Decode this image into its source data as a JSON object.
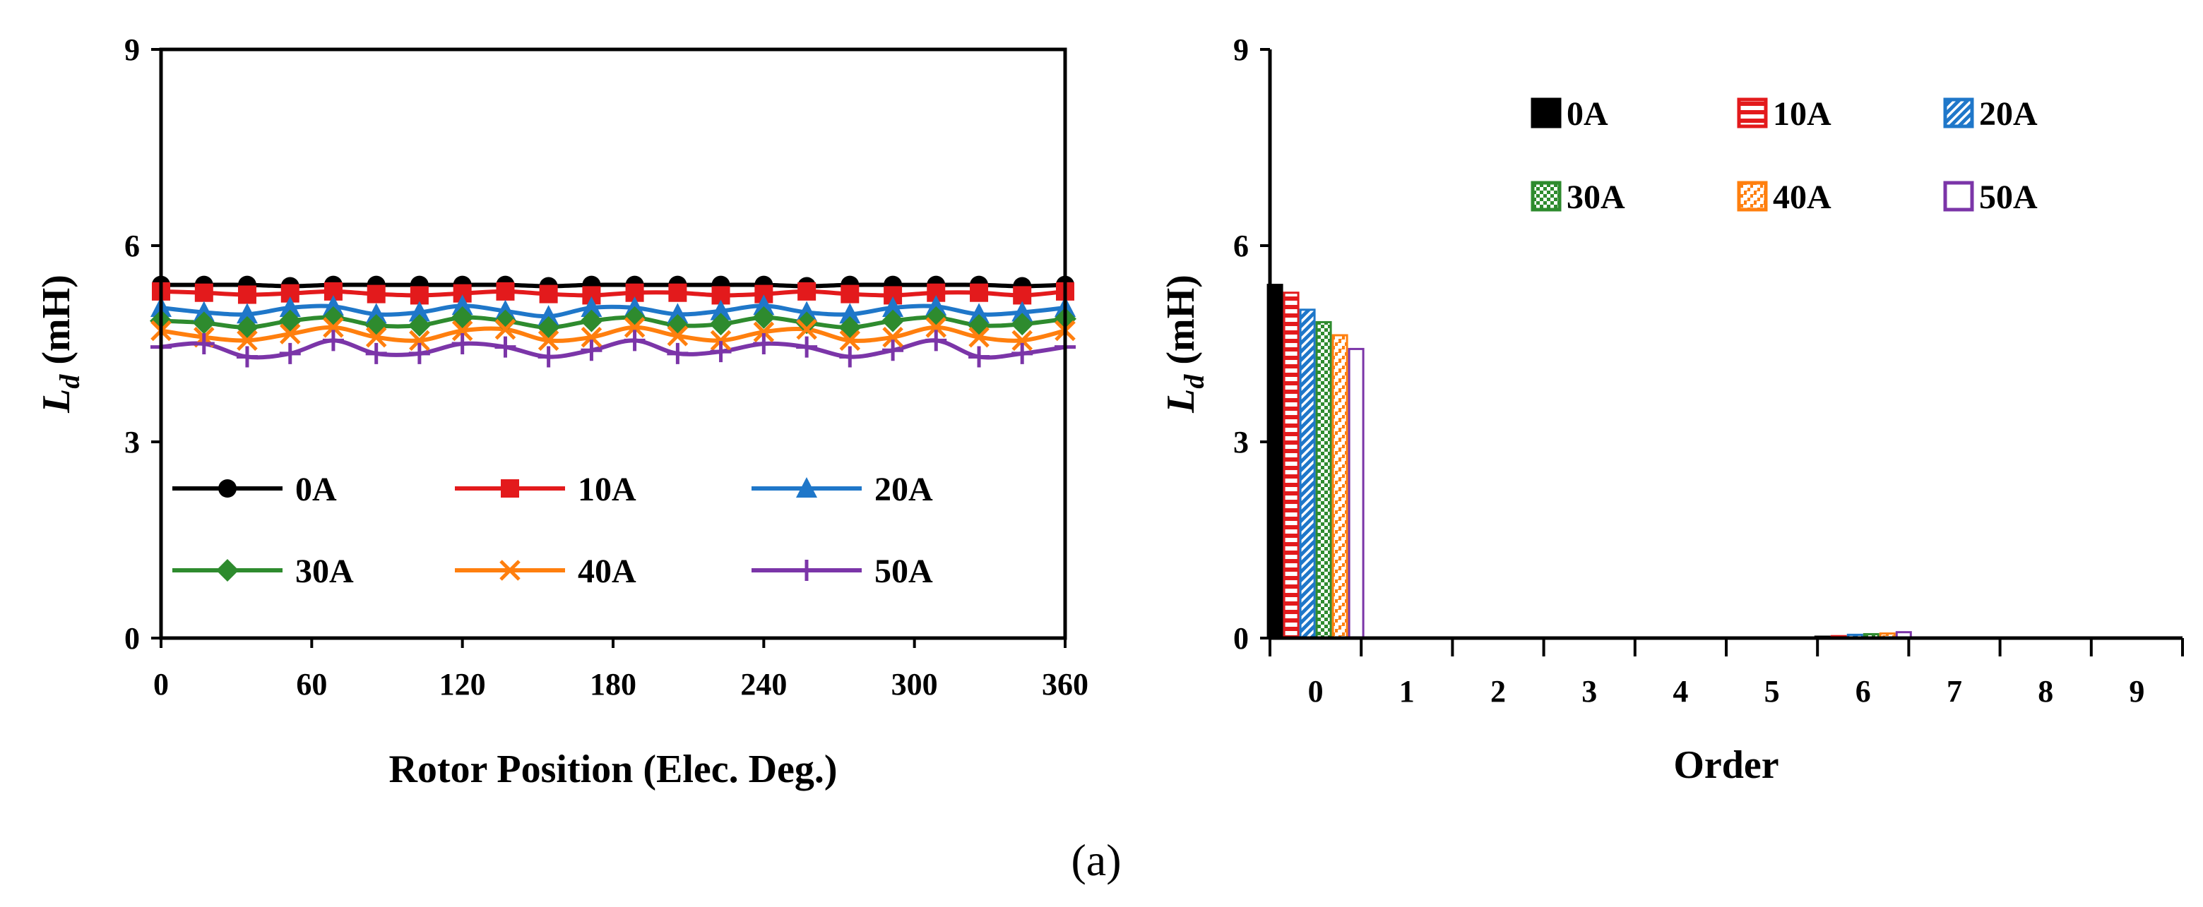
{
  "caption": "(a)",
  "chart_data": [
    {
      "type": "line",
      "xlabel": "Rotor Position (Elec. Deg.)",
      "ylabel_main": "L",
      "ylabel_sub": "d",
      "ylabel_unit": " (mH)",
      "xlim": [
        0,
        360
      ],
      "ylim": [
        0,
        9
      ],
      "xticks": [
        0,
        60,
        120,
        180,
        240,
        300,
        360
      ],
      "yticks": [
        0,
        3,
        6,
        9
      ],
      "grid": false,
      "legend_position": "bottom-inside",
      "x": [
        0,
        17.1,
        34.3,
        51.4,
        68.6,
        85.7,
        102.9,
        120,
        137.1,
        154.3,
        171.4,
        188.6,
        205.7,
        222.9,
        240,
        257.1,
        274.3,
        291.4,
        308.6,
        325.7,
        342.9,
        360
      ],
      "series": [
        {
          "name": "0A",
          "color": "#000000",
          "marker": "circle",
          "values": [
            5.4,
            5.4,
            5.4,
            5.38,
            5.4,
            5.4,
            5.4,
            5.4,
            5.4,
            5.38,
            5.4,
            5.4,
            5.4,
            5.4,
            5.4,
            5.38,
            5.4,
            5.4,
            5.4,
            5.4,
            5.38,
            5.4
          ]
        },
        {
          "name": "10A",
          "color": "#e31a1c",
          "marker": "square",
          "values": [
            5.3,
            5.28,
            5.25,
            5.27,
            5.3,
            5.26,
            5.24,
            5.27,
            5.3,
            5.26,
            5.24,
            5.28,
            5.28,
            5.24,
            5.26,
            5.3,
            5.26,
            5.24,
            5.28,
            5.28,
            5.24,
            5.3
          ]
        },
        {
          "name": "20A",
          "color": "#1f77c9",
          "marker": "triangle",
          "values": [
            5.05,
            4.98,
            4.95,
            5.05,
            5.07,
            4.95,
            4.98,
            5.08,
            5.0,
            4.92,
            5.05,
            5.05,
            4.95,
            5.0,
            5.08,
            4.98,
            4.95,
            5.05,
            5.07,
            4.95,
            4.98,
            5.05
          ]
        },
        {
          "name": "30A",
          "color": "#2e8b2e",
          "marker": "diamond",
          "values": [
            4.85,
            4.82,
            4.75,
            4.85,
            4.9,
            4.78,
            4.78,
            4.9,
            4.85,
            4.75,
            4.85,
            4.9,
            4.78,
            4.8,
            4.9,
            4.82,
            4.75,
            4.85,
            4.9,
            4.78,
            4.8,
            4.88
          ]
        },
        {
          "name": "40A",
          "color": "#ff7f0e",
          "marker": "x",
          "values": [
            4.7,
            4.6,
            4.55,
            4.65,
            4.75,
            4.6,
            4.55,
            4.7,
            4.72,
            4.55,
            4.6,
            4.75,
            4.62,
            4.55,
            4.68,
            4.72,
            4.55,
            4.6,
            4.75,
            4.6,
            4.55,
            4.7
          ]
        },
        {
          "name": "50A",
          "color": "#7b35a8",
          "marker": "plus",
          "values": [
            4.45,
            4.5,
            4.3,
            4.35,
            4.55,
            4.35,
            4.35,
            4.5,
            4.45,
            4.3,
            4.4,
            4.55,
            4.35,
            4.38,
            4.5,
            4.45,
            4.3,
            4.4,
            4.55,
            4.3,
            4.35,
            4.45
          ]
        }
      ]
    },
    {
      "type": "bar",
      "xlabel": "Order",
      "ylabel_main": "L",
      "ylabel_sub": "d",
      "ylabel_unit": " (mH)",
      "categories": [
        "0",
        "1",
        "2",
        "3",
        "4",
        "5",
        "6",
        "7",
        "8",
        "9"
      ],
      "ylim": [
        0,
        9
      ],
      "yticks": [
        0,
        3,
        6,
        9
      ],
      "grid": false,
      "legend_position": "top-inside",
      "series": [
        {
          "name": "0A",
          "color": "#000000",
          "pattern": "solid",
          "values": [
            5.4,
            0,
            0,
            0,
            0,
            0,
            0.02,
            0,
            0,
            0
          ]
        },
        {
          "name": "10A",
          "color": "#e31a1c",
          "pattern": "hstripe",
          "values": [
            5.28,
            0,
            0,
            0,
            0,
            0,
            0.03,
            0,
            0,
            0
          ]
        },
        {
          "name": "20A",
          "color": "#1f77c9",
          "pattern": "diag",
          "values": [
            5.02,
            0,
            0,
            0,
            0,
            0,
            0.05,
            0,
            0,
            0
          ]
        },
        {
          "name": "30A",
          "color": "#2e8b2e",
          "pattern": "check",
          "values": [
            4.83,
            0,
            0,
            0,
            0,
            0,
            0.06,
            0,
            0,
            0
          ]
        },
        {
          "name": "40A",
          "color": "#ff7f0e",
          "pattern": "step",
          "values": [
            4.63,
            0,
            0,
            0,
            0,
            0,
            0.07,
            0,
            0,
            0
          ]
        },
        {
          "name": "50A",
          "color": "#7b35a8",
          "pattern": "hollow",
          "values": [
            4.42,
            0,
            0,
            0,
            0,
            0,
            0.09,
            0,
            0,
            0
          ]
        }
      ]
    }
  ]
}
